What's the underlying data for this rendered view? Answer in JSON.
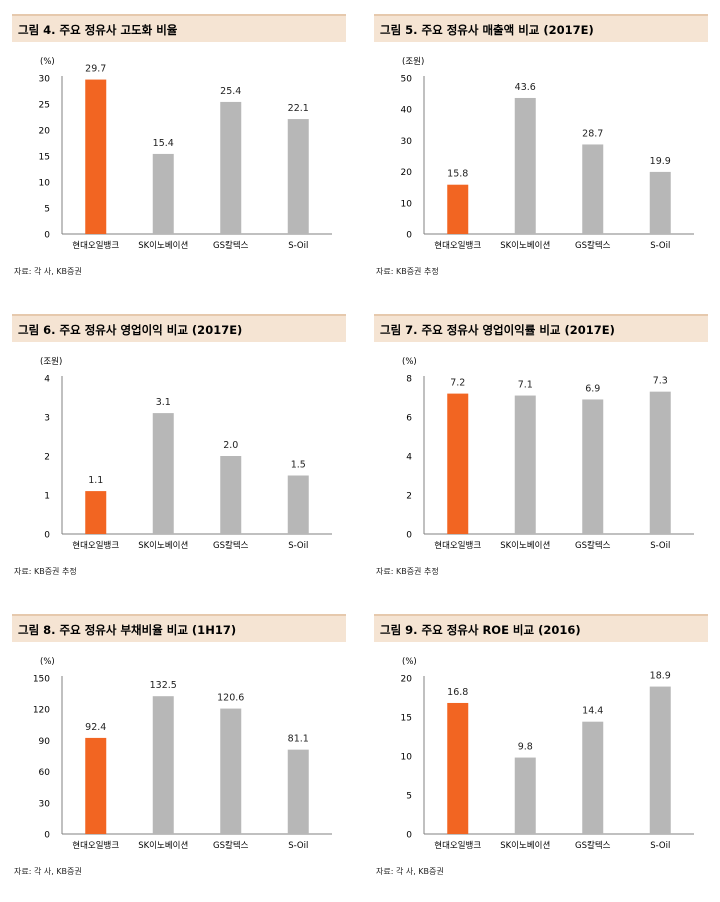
{
  "panels": [
    {
      "title": "그림 4. 주요 정유사 고도화 비율",
      "source": "자료: 각 사, KB증권",
      "chart_data": {
        "type": "bar",
        "unit_label": "(%)",
        "categories": [
          "현대오일뱅크",
          "SK이노베이션",
          "GS칼텍스",
          "S-Oil"
        ],
        "values": [
          29.7,
          15.4,
          25.4,
          22.1
        ],
        "value_labels": [
          "29.7",
          "15.4",
          "25.4",
          "22.1"
        ],
        "ylim": [
          0,
          30
        ],
        "yticks": [
          "0",
          "5",
          "10",
          "15",
          "20",
          "25",
          "30"
        ],
        "highlight_index": 0
      }
    },
    {
      "title": "그림 5. 주요 정유사 매출액 비교 (2017E)",
      "source": "자료: KB증권 추정",
      "chart_data": {
        "type": "bar",
        "unit_label": "(조원)",
        "categories": [
          "현대오일뱅크",
          "SK이노베이션",
          "GS칼텍스",
          "S-Oil"
        ],
        "values": [
          15.8,
          43.6,
          28.7,
          19.9
        ],
        "value_labels": [
          "15.8",
          "43.6",
          "28.7",
          "19.9"
        ],
        "ylim": [
          0,
          50
        ],
        "yticks": [
          "0",
          "10",
          "20",
          "30",
          "40",
          "50"
        ],
        "highlight_index": 0
      }
    },
    {
      "title": "그림 6. 주요 정유사 영업이익 비교 (2017E)",
      "source": "자료: KB증권 추정",
      "chart_data": {
        "type": "bar",
        "unit_label": "(조원)",
        "categories": [
          "현대오일뱅크",
          "SK이노베이션",
          "GS칼텍스",
          "S-Oil"
        ],
        "values": [
          1.1,
          3.1,
          2.0,
          1.5
        ],
        "value_labels": [
          "1.1",
          "3.1",
          "2.0",
          "1.5"
        ],
        "ylim": [
          0,
          4
        ],
        "yticks": [
          "0",
          "1",
          "2",
          "3",
          "4"
        ],
        "highlight_index": 0
      }
    },
    {
      "title": "그림 7. 주요 정유사 영업이익률 비교 (2017E)",
      "source": "자료: KB증권 추정",
      "chart_data": {
        "type": "bar",
        "unit_label": "(%)",
        "categories": [
          "현대오일뱅크",
          "SK이노베이션",
          "GS칼텍스",
          "S-Oil"
        ],
        "values": [
          7.2,
          7.1,
          6.9,
          7.3
        ],
        "value_labels": [
          "7.2",
          "7.1",
          "6.9",
          "7.3"
        ],
        "ylim": [
          0,
          8
        ],
        "yticks": [
          "0",
          "2",
          "4",
          "6",
          "8"
        ],
        "highlight_index": 0
      }
    },
    {
      "title": "그림 8. 주요 정유사 부채비율 비교 (1H17)",
      "source": "자료: 각 사, KB증권",
      "chart_data": {
        "type": "bar",
        "unit_label": "(%)",
        "categories": [
          "현대오일뱅크",
          "SK이노베이션",
          "GS칼텍스",
          "S-Oil"
        ],
        "values": [
          92.4,
          132.5,
          120.6,
          81.1
        ],
        "value_labels": [
          "92.4",
          "132.5",
          "120.6",
          "81.1"
        ],
        "ylim": [
          0,
          150
        ],
        "yticks": [
          "0",
          "30",
          "60",
          "90",
          "120",
          "150"
        ],
        "highlight_index": 0
      }
    },
    {
      "title": "그림 9. 주요 정유사 ROE 비교 (2016)",
      "source": "자료: 각 사, KB증권",
      "chart_data": {
        "type": "bar",
        "unit_label": "(%)",
        "categories": [
          "현대오일뱅크",
          "SK이노베이션",
          "GS칼텍스",
          "S-Oil"
        ],
        "values": [
          16.8,
          9.8,
          14.4,
          18.9
        ],
        "value_labels": [
          "16.8",
          "9.8",
          "14.4",
          "18.9"
        ],
        "ylim": [
          0,
          20
        ],
        "yticks": [
          "0",
          "5",
          "10",
          "15",
          "20"
        ],
        "highlight_index": 0
      }
    }
  ],
  "colors": {
    "highlight": "#f26522",
    "bar": "#b7b7b7",
    "axis": "#808080"
  }
}
